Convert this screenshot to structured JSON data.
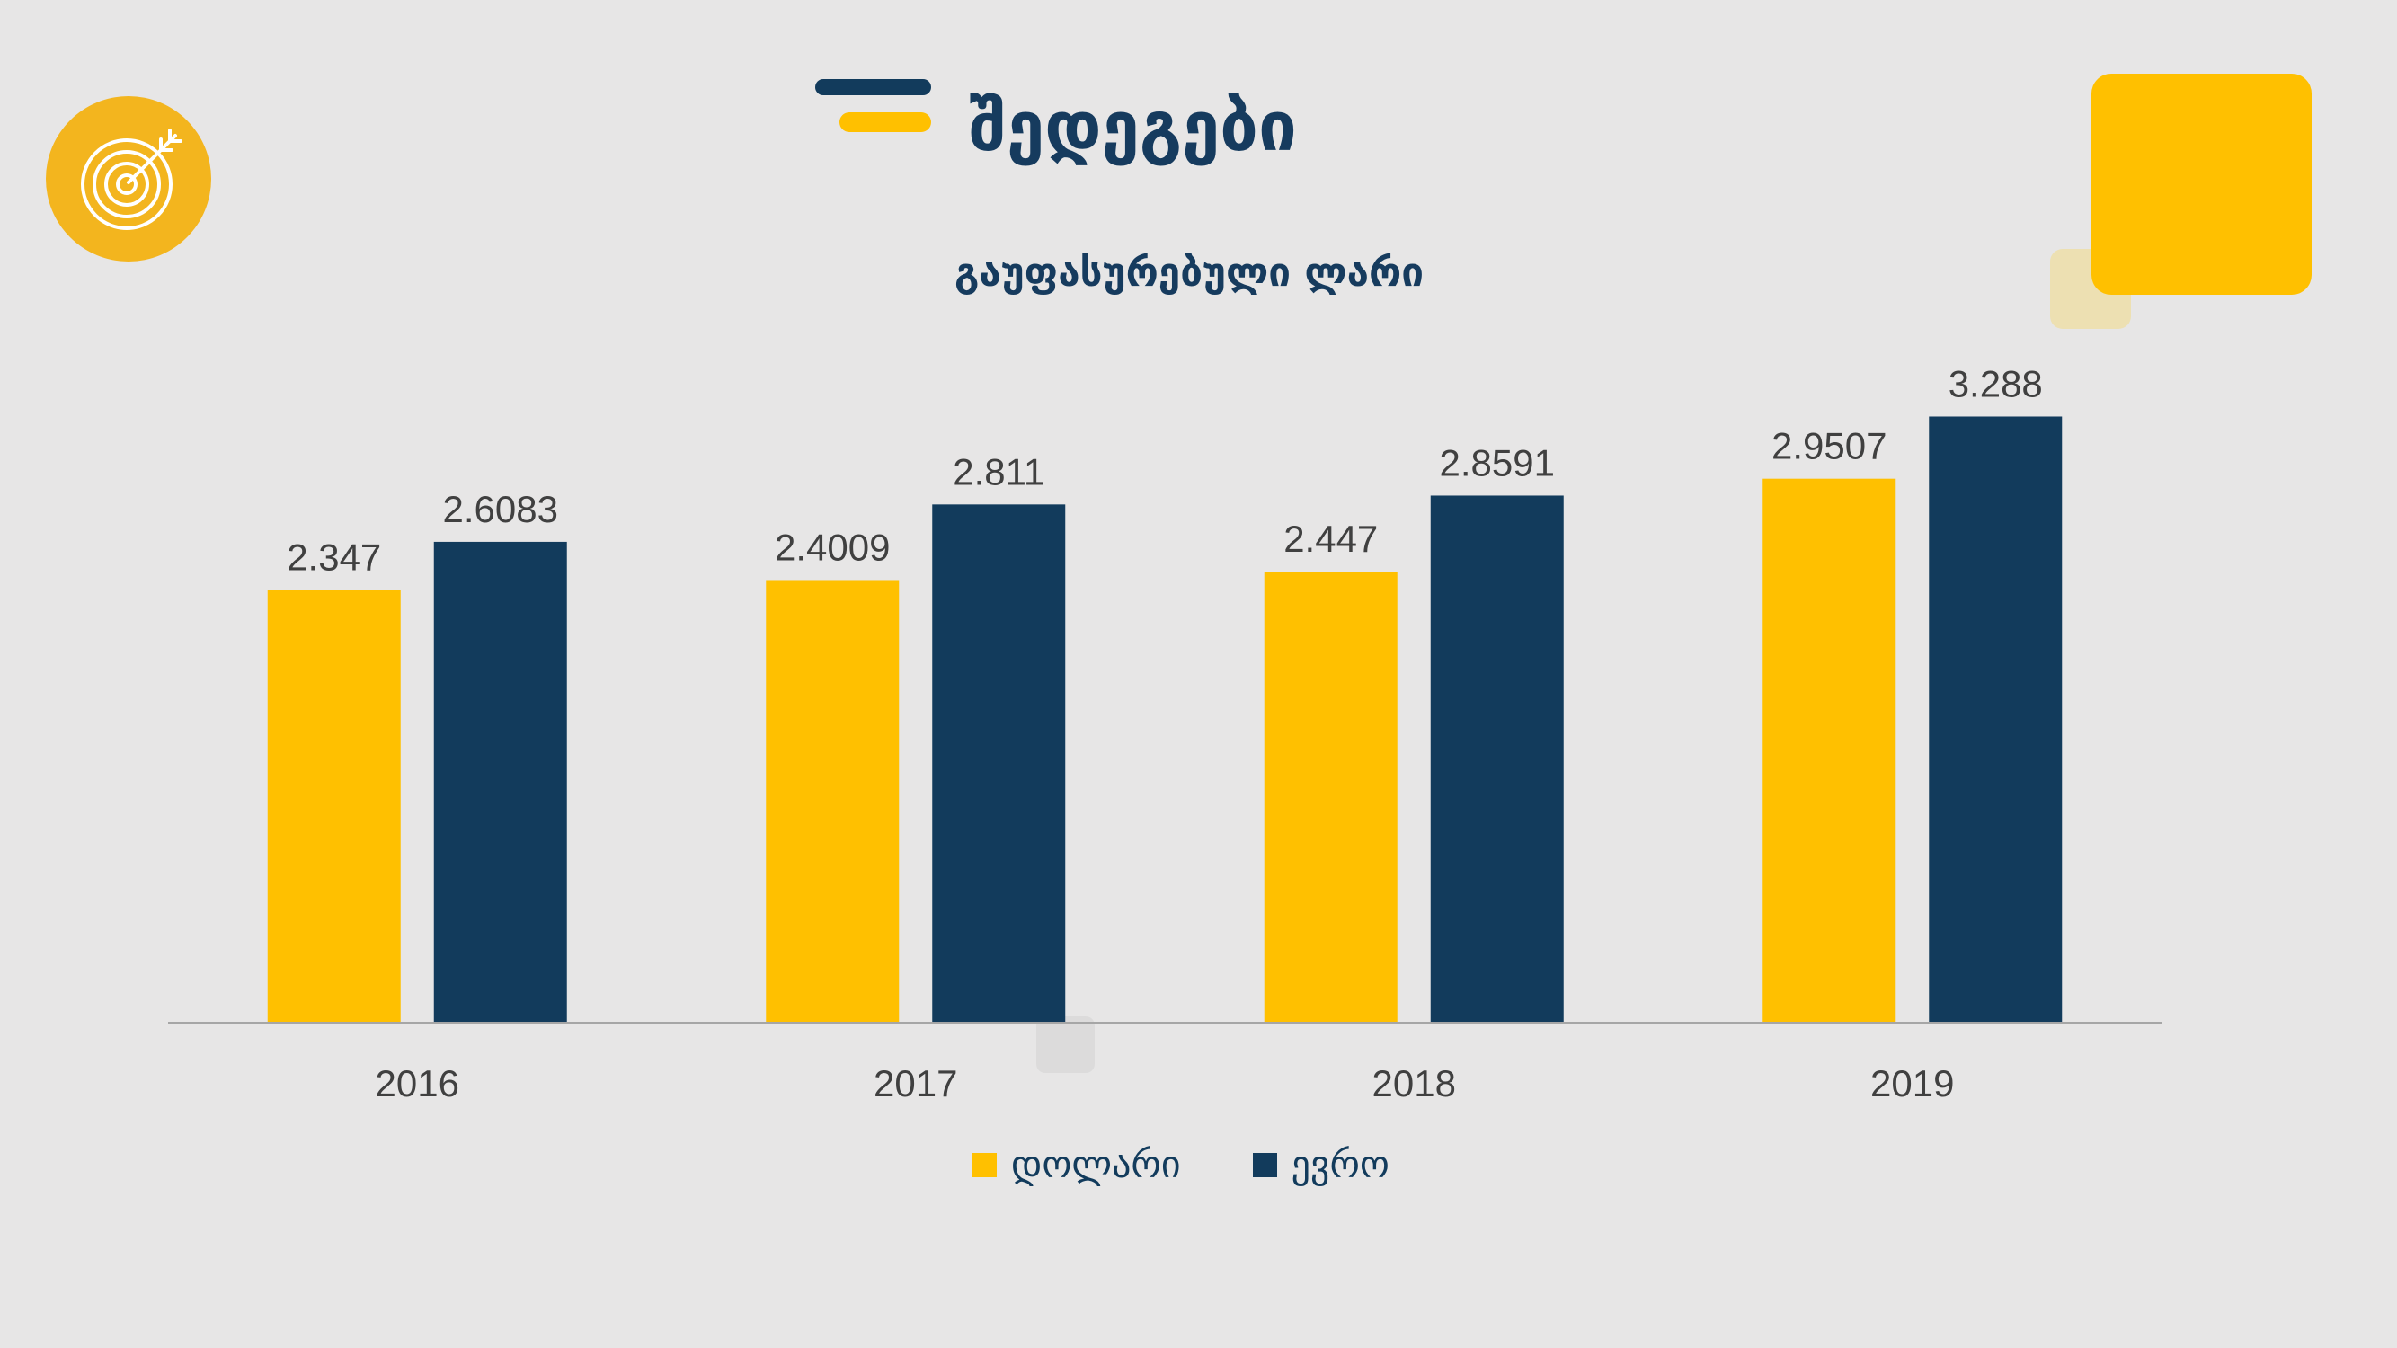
{
  "title": "შედეგები",
  "icons": {
    "badge_icon": "target-arrow-icon"
  },
  "colors": {
    "background": "#e7e6e6",
    "accent_yellow": "#ffc000",
    "navy": "#123b5c",
    "badge": "#f3b51e",
    "data_label": "#404040",
    "axis": "#a6a6a6"
  },
  "chart_data": {
    "type": "bar",
    "title": "გაუფასურებული ლარი",
    "categories": [
      "2016",
      "2017",
      "2018",
      "2019"
    ],
    "series": [
      {
        "name": "დოლარი",
        "values": [
          2.347,
          2.4009,
          2.447,
          2.9507
        ],
        "color": "#ffc000"
      },
      {
        "name": "ევრო",
        "values": [
          2.6083,
          2.811,
          2.8591,
          3.288
        ],
        "color": "#123b5c"
      }
    ],
    "data_labels": true,
    "xlabel": "",
    "ylabel": "",
    "ylim": [
      0,
      3.5
    ],
    "grid": false,
    "legend": "bottom"
  }
}
